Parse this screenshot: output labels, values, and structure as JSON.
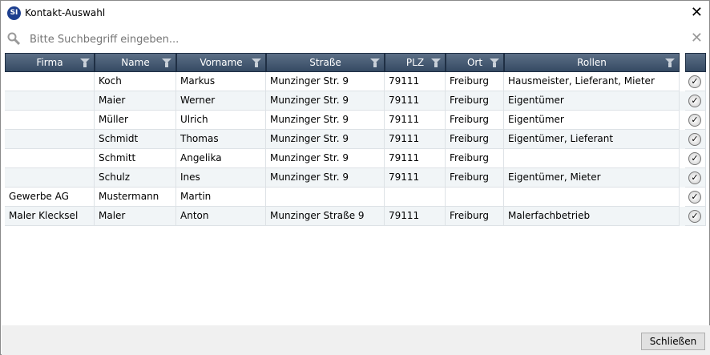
{
  "window": {
    "title": "Kontakt-Auswahl",
    "logo_text": "SI",
    "close": "✕"
  },
  "search": {
    "placeholder": "Bitte Suchbegriff eingeben...",
    "clear": "✕"
  },
  "columns": [
    "Firma",
    "Name",
    "Vorname",
    "Straße",
    "PLZ",
    "Ort",
    "Rollen"
  ],
  "rows": [
    [
      "",
      "Koch",
      "Markus",
      "Munzinger Str. 9",
      "79111",
      "Freiburg",
      "Hausmeister, Lieferant, Mieter"
    ],
    [
      "",
      "Maier",
      "Werner",
      "Munzinger Str. 9",
      "79111",
      "Freiburg",
      "Eigentümer"
    ],
    [
      "",
      "Müller",
      "Ulrich",
      "Munzinger Str. 9",
      "79111",
      "Freiburg",
      "Eigentümer"
    ],
    [
      "",
      "Schmidt",
      "Thomas",
      "Munzinger Str. 9",
      "79111",
      "Freiburg",
      "Eigentümer, Lieferant"
    ],
    [
      "",
      "Schmitt",
      "Angelika",
      "Munzinger Str. 9",
      "79111",
      "Freiburg",
      ""
    ],
    [
      "",
      "Schulz",
      "Ines",
      "Munzinger Str. 9",
      "79111",
      "Freiburg",
      "Eigentümer, Mieter"
    ],
    [
      "Gewerbe AG",
      "Mustermann",
      "Martin",
      "",
      "",
      "",
      ""
    ],
    [
      "Maler Klecksel",
      "Maler",
      "Anton",
      "Munzinger Straße 9",
      "79111",
      "Freiburg",
      "Malerfachbetrieb"
    ]
  ],
  "select_icon": "check-circle-icon",
  "footer": {
    "close_button": "Schließen"
  }
}
